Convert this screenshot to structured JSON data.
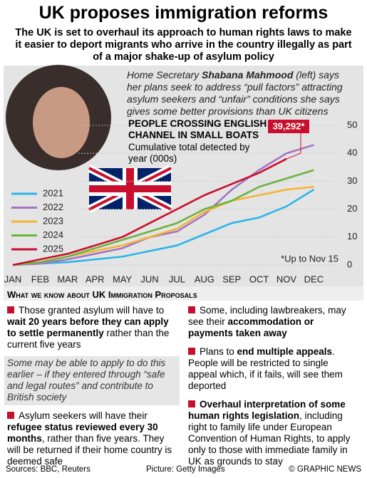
{
  "header": {
    "title": "UK proposes immigration reforms",
    "subtitle": "The UK is set to overhaul its approach to human rights laws to make it easier to deport migrants who arrive in the country illegally as part of a major shake-up of asylum policy"
  },
  "quote": [
    {
      "text": "Home Secretary "
    },
    {
      "text": "Shabana Mahmood",
      "bold": true
    },
    {
      "text": " (left) says her plans seek to address “pull factors” attracting asylum seekers and “unfair” conditions she says gives some better provisions than UK citizens"
    }
  ],
  "chart_data": {
    "type": "line",
    "title": "PEOPLE CROSSING ENGLISH CHANNEL IN SMALL BOATS",
    "subtitle": "Cumulative total detected by year (000s)",
    "categories": [
      "JAN",
      "FEB",
      "MAR",
      "APR",
      "MAY",
      "JUN",
      "JUL",
      "AUG",
      "SEP",
      "OCT",
      "NOV",
      "DEC"
    ],
    "series": [
      {
        "name": "2021",
        "color": "#2bb5e8",
        "values": [
          0,
          0.5,
          1,
          2,
          3,
          5,
          7,
          11,
          15,
          17,
          21,
          27
        ]
      },
      {
        "name": "2022",
        "color": "#a274c4",
        "values": [
          0,
          0.5,
          2,
          4,
          6,
          10,
          12,
          18,
          27,
          34,
          40,
          43
        ]
      },
      {
        "name": "2023",
        "color": "#f5b335",
        "values": [
          0,
          1,
          3,
          5,
          7,
          10,
          13,
          19,
          23,
          25,
          27,
          28
        ]
      },
      {
        "name": "2024",
        "color": "#6cb33f",
        "values": [
          0,
          1,
          3,
          6,
          9,
          12,
          15,
          20,
          23,
          28,
          31,
          34
        ]
      },
      {
        "name": "2025",
        "color": "#c8102e",
        "values": [
          0,
          2,
          4,
          7,
          10,
          15,
          20,
          25,
          29,
          33,
          38,
          null
        ]
      }
    ],
    "ylim": [
      0,
      50
    ],
    "yticks": [
      0,
      10,
      20,
      30,
      40,
      50
    ],
    "annotation": {
      "text": "39,292*",
      "value": 39292
    },
    "note": "*Up to Nov 15"
  },
  "proposals": {
    "heading": "What we know about UK Immigration Proposals",
    "left": [
      {
        "kind": "bullet",
        "parts": [
          {
            "text": "Those granted asylum will have to "
          },
          {
            "text": "wait 20 years before they can apply to settle permanently",
            "bold": true
          },
          {
            "text": " rather than the current five years"
          }
        ]
      },
      {
        "kind": "aside",
        "parts": [
          {
            "text": "Some may be able to apply to do this earlier – if they entered through “safe and legal routes” and contribute to British society"
          }
        ]
      },
      {
        "kind": "bullet",
        "parts": [
          {
            "text": "Asylum seekers will have their "
          },
          {
            "text": "refugee status reviewed every 30 months",
            "bold": true
          },
          {
            "text": ", rather than five years. They will be returned if their home country is deemed safe"
          }
        ]
      }
    ],
    "right": [
      {
        "kind": "bullet",
        "parts": [
          {
            "text": "Some, including lawbreakers, may see their "
          },
          {
            "text": "accommodation or payments taken away",
            "bold": true
          }
        ]
      },
      {
        "kind": "bullet",
        "parts": [
          {
            "text": "Plans to "
          },
          {
            "text": "end multiple appeals",
            "bold": true
          },
          {
            "text": ". People will be restricted to single appeal which, if it fails, will see them deported"
          }
        ]
      },
      {
        "kind": "bullet",
        "parts": [
          {
            "text": "Overhaul interpretation of some human rights legislation",
            "bold": true
          },
          {
            "text": ", including right to family life under European Convention of Human Rights, to apply only to those with immediate family in UK as grounds to stay"
          }
        ]
      }
    ]
  },
  "footer": {
    "sources": "Sources: BBC, Reuters",
    "picture": "Picture: Getty Images",
    "credit": "© GRAPHIC NEWS"
  }
}
